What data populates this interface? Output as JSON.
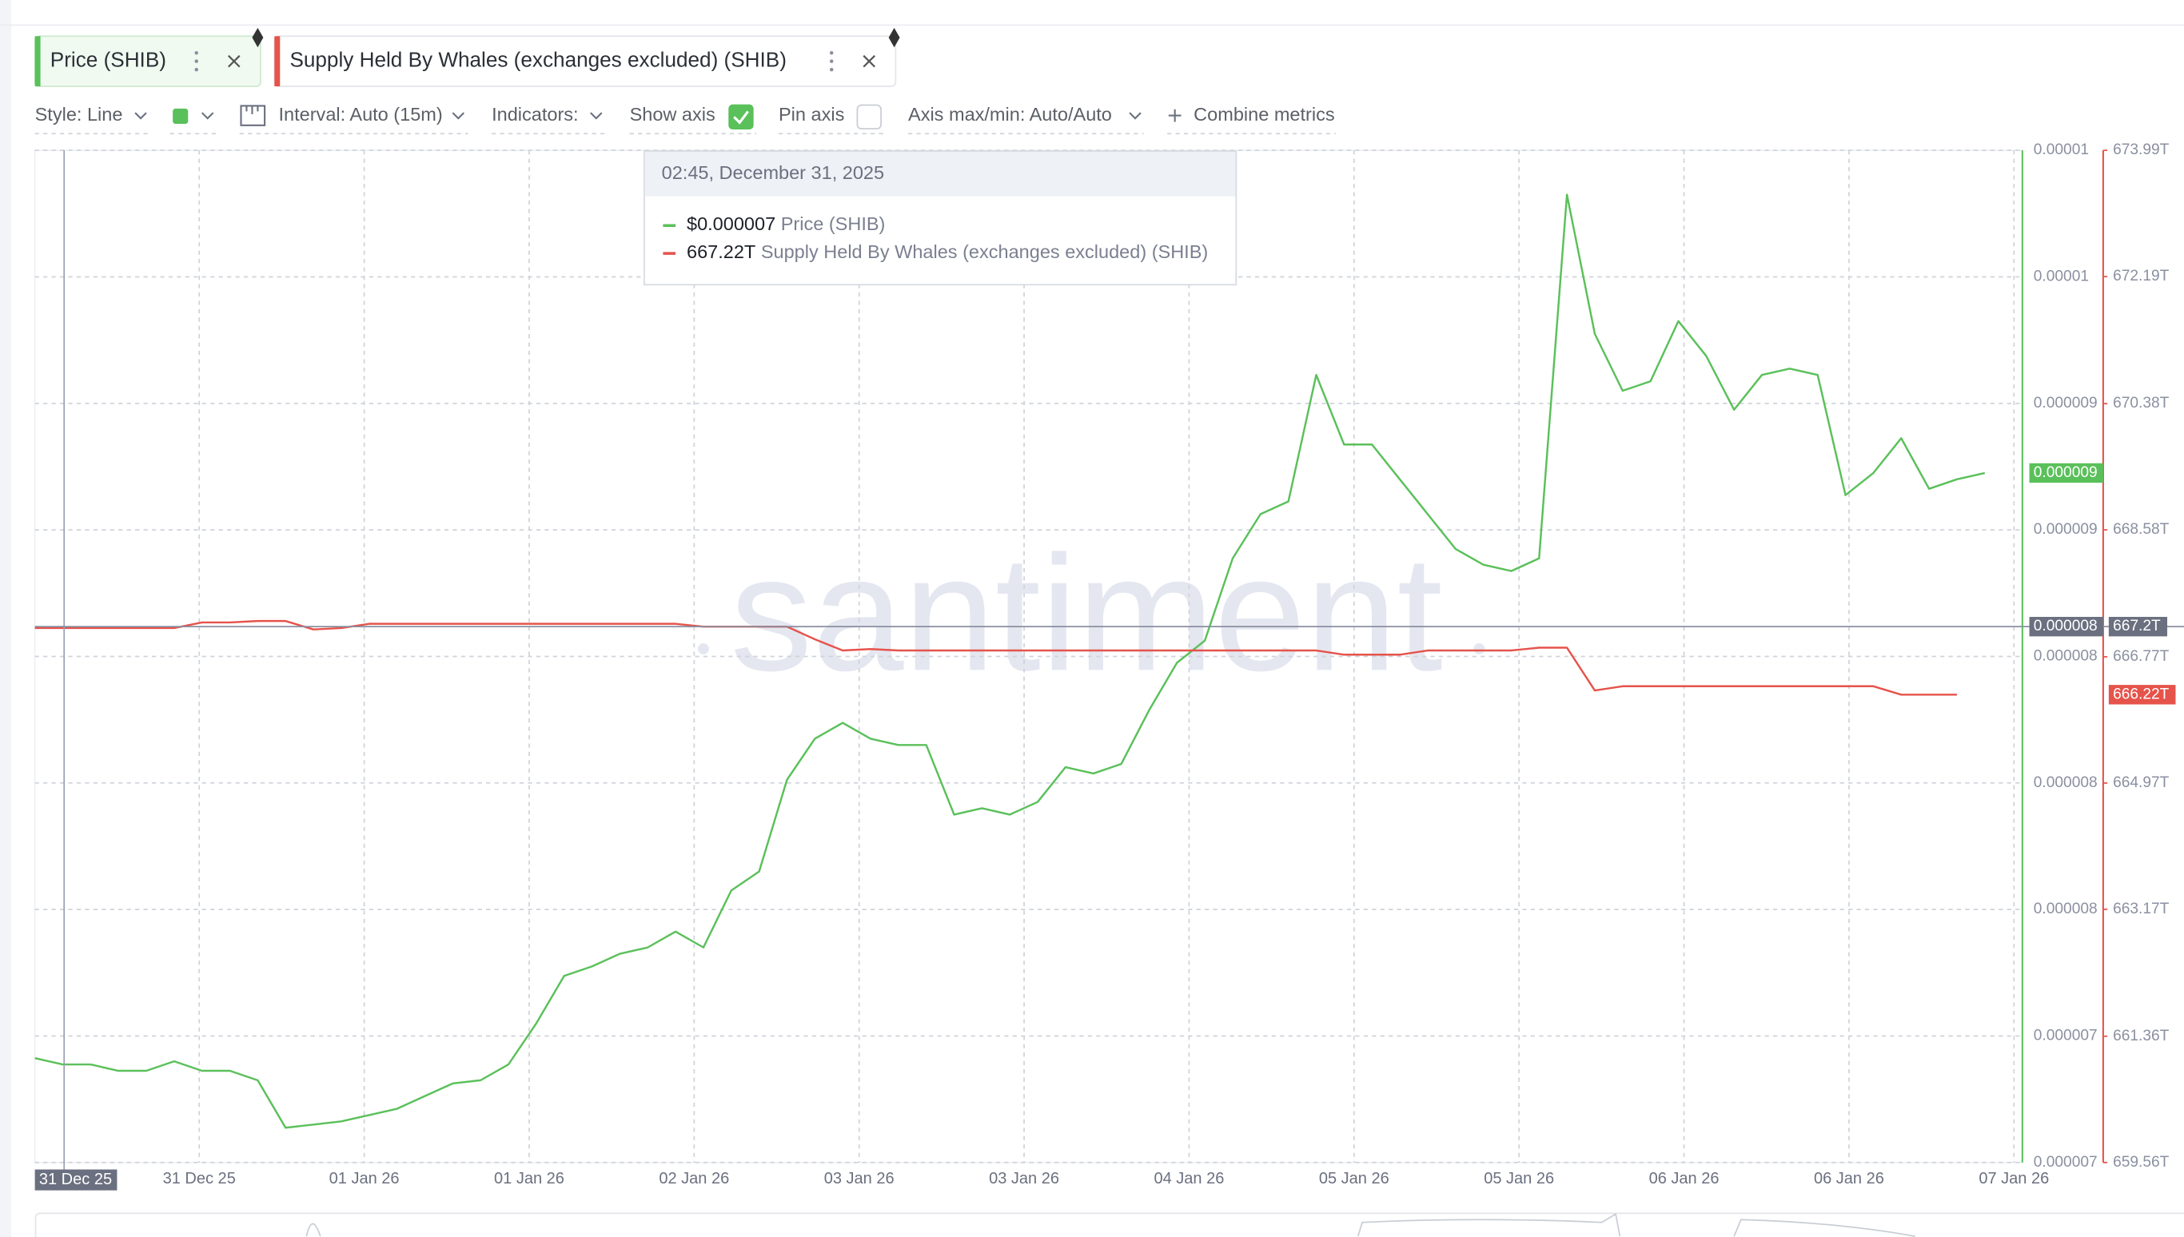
{
  "toolbar": [
    "Style: Line",
    "Interval: Auto (15m)",
    "Indicators:",
    "Show axis",
    "Pin axis",
    "Axis max/min: Auto/Auto",
    "Combine metrics"
  ],
  "chart_data": {
    "type": "line",
    "watermark": "santiment",
    "xtick_labels": [
      "31 Dec 25",
      "01 Jan 26",
      "01 Jan 26",
      "02 Jan 26",
      "03 Jan 26",
      "03 Jan 26",
      "04 Jan 26",
      "05 Jan 26",
      "05 Jan 26",
      "06 Jan 26",
      "06 Jan 26",
      "07 Jan 26"
    ],
    "ylim": [
      6.8e-06,
      1e-05
    ],
    "yticks": [
      {
        "value": 6.8e-06,
        "label": "0.000007"
      },
      {
        "value": 7.2e-06,
        "label": "0.000007"
      },
      {
        "value": 7.6e-06,
        "label": "0.000008"
      },
      {
        "value": 8e-06,
        "label": "0.000008"
      },
      {
        "value": 8.4e-06,
        "label": "0.000008"
      },
      {
        "value": 8.8e-06,
        "label": "0.000009"
      },
      {
        "value": 9.2e-06,
        "label": "0.000009"
      },
      {
        "value": 9.6e-06,
        "label": "0.00001"
      },
      {
        "value": 1e-05,
        "label": "0.00001"
      }
    ],
    "y2lim": [
      659.56,
      673.99
    ],
    "y2ticks": [
      {
        "value": 659.56,
        "label": "659.56T"
      },
      {
        "value": 661.36,
        "label": "661.36T"
      },
      {
        "value": 663.17,
        "label": "663.17T"
      },
      {
        "value": 664.97,
        "label": "664.97T"
      },
      {
        "value": 666.77,
        "label": "666.77T"
      },
      {
        "value": 668.58,
        "label": "668.58T"
      },
      {
        "value": 670.38,
        "label": "670.38T"
      },
      {
        "value": 672.19,
        "label": "672.19T"
      },
      {
        "value": 673.99,
        "label": "673.99T"
      }
    ],
    "grid": true,
    "series": [
      {
        "name": "Price (SHIB)",
        "color": "#5ac05a",
        "axis": "y",
        "last_label": "0.000009",
        "values": [
          7.13e-06,
          7.11e-06,
          7.11e-06,
          7.09e-06,
          7.09e-06,
          7.12e-06,
          7.09e-06,
          7.09e-06,
          7.06e-06,
          6.91e-06,
          6.92e-06,
          6.93e-06,
          6.95e-06,
          6.97e-06,
          7.01e-06,
          7.05e-06,
          7.06e-06,
          7.11e-06,
          7.24e-06,
          7.39e-06,
          7.42e-06,
          7.46e-06,
          7.48e-06,
          7.53e-06,
          7.48e-06,
          7.66e-06,
          7.72e-06,
          8.01e-06,
          8.14e-06,
          8.19e-06,
          8.14e-06,
          8.12e-06,
          8.12e-06,
          7.9e-06,
          7.92e-06,
          7.9e-06,
          7.94e-06,
          8.05e-06,
          8.03e-06,
          8.06e-06,
          8.23e-06,
          8.38e-06,
          8.45e-06,
          8.71e-06,
          8.85e-06,
          8.89e-06,
          9.29e-06,
          9.07e-06,
          9.07e-06,
          8.96e-06,
          8.85e-06,
          8.74e-06,
          8.69e-06,
          8.67e-06,
          8.71e-06,
          9.86e-06,
          9.42e-06,
          9.24e-06,
          9.27e-06,
          9.46e-06,
          9.35e-06,
          9.18e-06,
          9.29e-06,
          9.31e-06,
          9.29e-06,
          8.91e-06,
          8.98e-06,
          9.09e-06,
          8.93e-06,
          8.96e-06,
          8.98e-06
        ]
      },
      {
        "name": "Supply Held By Whales (exchanges excluded) (SHIB)",
        "color": "#e5534b",
        "axis": "y2",
        "last_label": "666.22T",
        "values": [
          667.18,
          667.18,
          667.18,
          667.18,
          667.18,
          667.18,
          667.26,
          667.26,
          667.28,
          667.28,
          667.16,
          667.18,
          667.24,
          667.24,
          667.24,
          667.24,
          667.24,
          667.24,
          667.24,
          667.24,
          667.24,
          667.24,
          667.24,
          667.24,
          667.2,
          667.2,
          667.2,
          667.2,
          667.02,
          666.86,
          666.88,
          666.86,
          666.86,
          666.86,
          666.86,
          666.86,
          666.86,
          666.86,
          666.86,
          666.86,
          666.86,
          666.86,
          666.86,
          666.86,
          666.86,
          666.86,
          666.86,
          666.8,
          666.8,
          666.8,
          666.86,
          666.86,
          666.86,
          666.86,
          666.9,
          666.9,
          666.29,
          666.35,
          666.35,
          666.35,
          666.35,
          666.35,
          666.35,
          666.35,
          666.35,
          666.35,
          666.35,
          666.23,
          666.23,
          666.23,
          null
        ]
      }
    ],
    "crosshair": {
      "x_label": "31 Dec 25",
      "y_label": "0.000008",
      "y2": {
        "value": 667.2,
        "label": "667.2T"
      }
    },
    "tooltip": {
      "title": "02:45, December 31, 2025",
      "values": [
        "$0.000007",
        "667.22T"
      ]
    }
  }
}
